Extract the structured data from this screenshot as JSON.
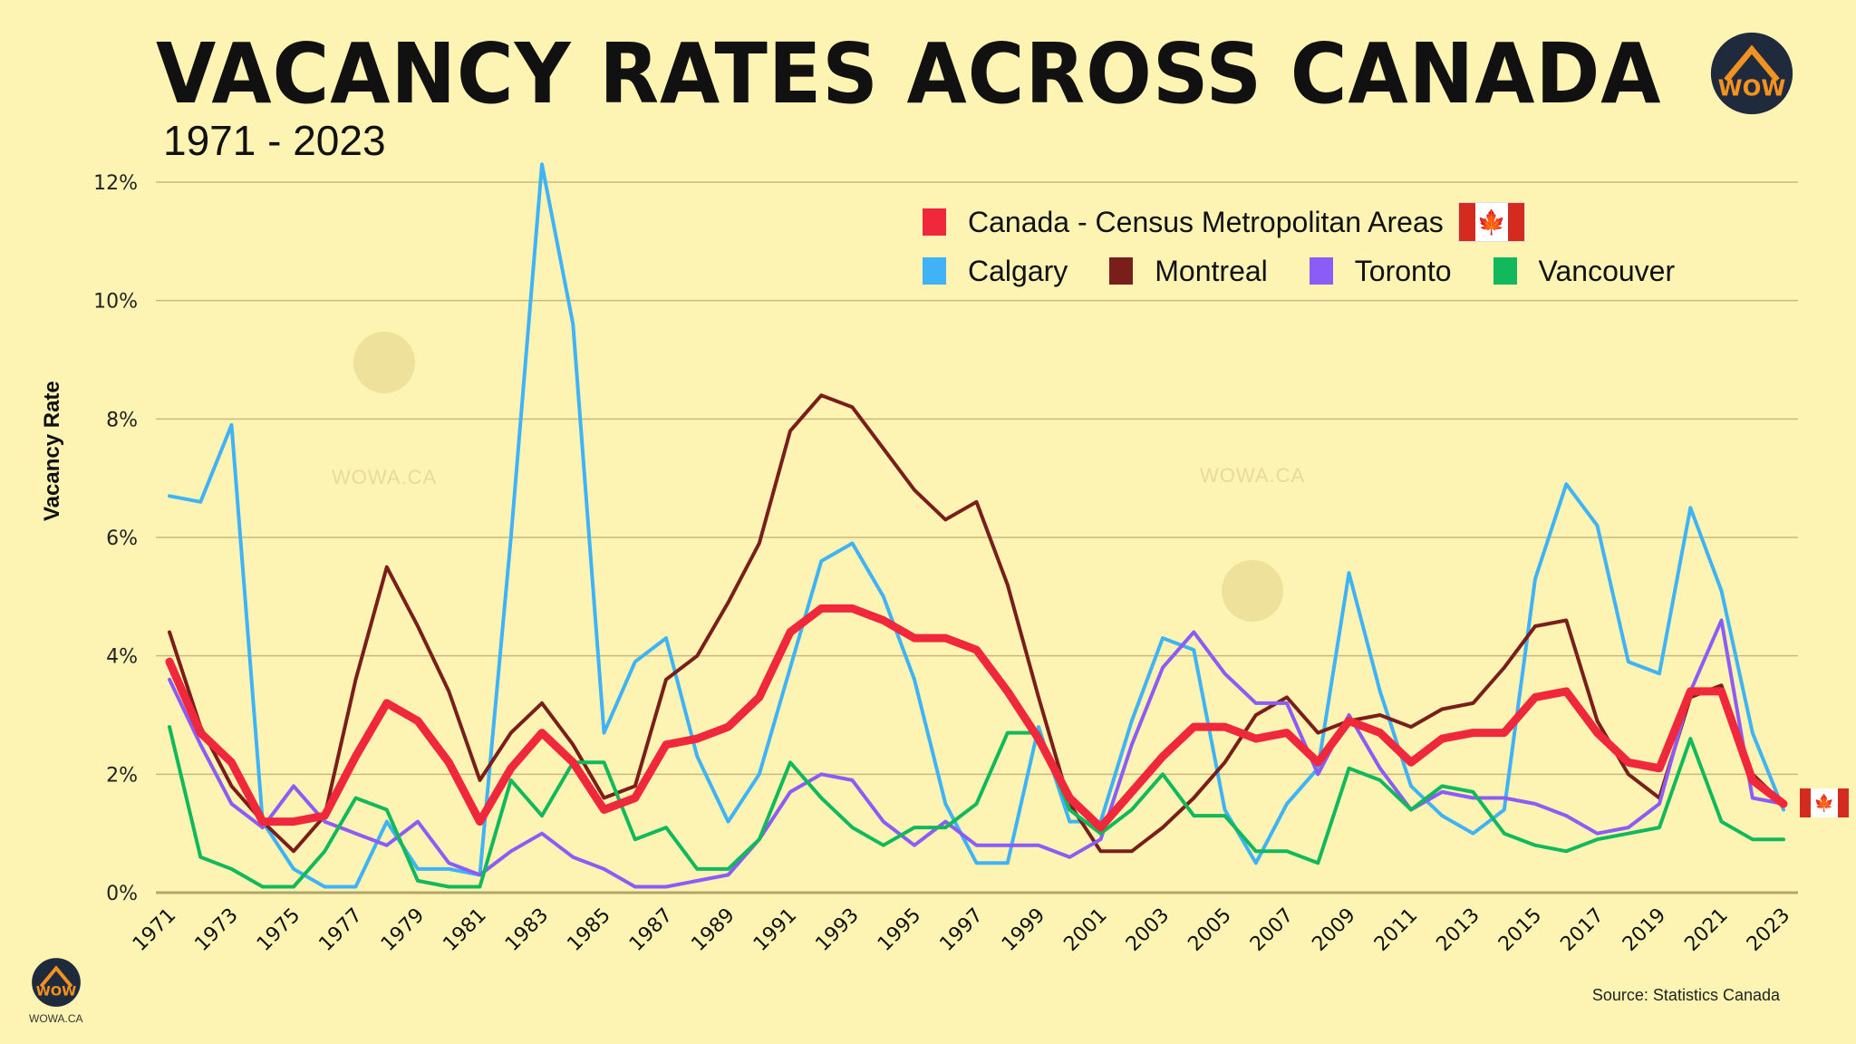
{
  "header": {
    "title": "VACANCY RATES ACROSS CANADA",
    "subtitle": "1971 - 2023"
  },
  "branding": {
    "logo_text": "WOW",
    "site": "WOWA.CA",
    "watermark": "WOWA.CA"
  },
  "footer": {
    "source": "Source: Statistics Canada"
  },
  "legend": {
    "items": [
      {
        "label": "Canada - Census Metropolitan Areas",
        "color": "#f0283c"
      },
      {
        "label": "Calgary",
        "color": "#3fb3f5"
      },
      {
        "label": "Montreal",
        "color": "#7a1e1c"
      },
      {
        "label": "Toronto",
        "color": "#8b5cf6"
      },
      {
        "label": "Vancouver",
        "color": "#12b85c"
      }
    ],
    "flag_symbol": "🍁"
  },
  "chart_data": {
    "type": "line",
    "title": "VACANCY RATES ACROSS CANADA",
    "subtitle": "1971 - 2023",
    "xlabel": "",
    "ylabel": "Vacancy Rate",
    "ylim": [
      0,
      12
    ],
    "yticks": [
      0,
      2,
      4,
      6,
      8,
      10,
      12
    ],
    "ytick_labels": [
      "0%",
      "2%",
      "4%",
      "6%",
      "8%",
      "10%",
      "12%"
    ],
    "xtick_labels": [
      "1971",
      "1973",
      "1975",
      "1977",
      "1979",
      "1981",
      "1983",
      "1985",
      "1987",
      "1989",
      "1991",
      "1993",
      "1995",
      "1997",
      "1999",
      "2001",
      "2003",
      "2005",
      "2007",
      "2009",
      "2011",
      "2013",
      "2015",
      "2017",
      "2019",
      "2021",
      "2023"
    ],
    "grid": true,
    "legend_position": "top-right",
    "x": [
      1971,
      1972,
      1973,
      1974,
      1975,
      1976,
      1977,
      1978,
      1979,
      1980,
      1981,
      1982,
      1983,
      1984,
      1985,
      1986,
      1987,
      1988,
      1989,
      1990,
      1991,
      1992,
      1993,
      1994,
      1995,
      1996,
      1997,
      1998,
      1999,
      2000,
      2001,
      2002,
      2003,
      2004,
      2005,
      2006,
      2007,
      2008,
      2009,
      2010,
      2011,
      2012,
      2013,
      2014,
      2015,
      2016,
      2017,
      2018,
      2019,
      2020,
      2021,
      2022,
      2023
    ],
    "series": [
      {
        "name": "Calgary",
        "color": "#3fb3f5",
        "width": 4,
        "values": [
          6.7,
          6.6,
          7.9,
          1.2,
          0.4,
          0.1,
          0.1,
          1.2,
          0.4,
          0.4,
          0.3,
          6.0,
          12.3,
          9.6,
          2.7,
          3.9,
          4.3,
          2.3,
          1.2,
          2.0,
          3.8,
          5.6,
          5.9,
          5.0,
          3.6,
          1.5,
          0.5,
          0.5,
          2.8,
          1.2,
          1.2,
          2.9,
          4.3,
          4.1,
          1.4,
          0.5,
          1.5,
          2.1,
          5.4,
          3.4,
          1.8,
          1.3,
          1.0,
          1.4,
          5.3,
          6.9,
          6.2,
          3.9,
          3.7,
          6.5,
          5.1,
          2.7,
          1.4
        ]
      },
      {
        "name": "Montreal",
        "color": "#7a1e1c",
        "width": 4,
        "values": [
          4.4,
          2.8,
          1.8,
          1.2,
          0.7,
          1.3,
          3.6,
          5.5,
          4.5,
          3.4,
          1.9,
          2.7,
          3.2,
          2.5,
          1.6,
          1.8,
          3.6,
          4.0,
          4.9,
          5.9,
          7.8,
          8.4,
          8.2,
          7.5,
          6.8,
          6.3,
          6.6,
          5.2,
          3.3,
          1.5,
          0.7,
          0.7,
          1.1,
          1.6,
          2.2,
          3.0,
          3.3,
          2.7,
          2.9,
          3.0,
          2.8,
          3.1,
          3.2,
          3.8,
          4.5,
          4.6,
          2.9,
          2.0,
          1.6,
          3.3,
          3.5,
          2.0,
          1.5
        ]
      },
      {
        "name": "Toronto",
        "color": "#8b5cf6",
        "width": 4,
        "values": [
          3.6,
          2.5,
          1.5,
          1.1,
          1.8,
          1.2,
          1.0,
          0.8,
          1.2,
          0.5,
          0.3,
          0.7,
          1.0,
          0.6,
          0.4,
          0.1,
          0.1,
          0.2,
          0.3,
          0.9,
          1.7,
          2.0,
          1.9,
          1.2,
          0.8,
          1.2,
          0.8,
          0.8,
          0.8,
          0.6,
          0.9,
          2.5,
          3.8,
          4.4,
          3.7,
          3.2,
          3.2,
          2.0,
          3.0,
          2.1,
          1.4,
          1.7,
          1.6,
          1.6,
          1.5,
          1.3,
          1.0,
          1.1,
          1.5,
          3.4,
          4.6,
          1.6,
          1.5
        ]
      },
      {
        "name": "Vancouver",
        "color": "#12b85c",
        "width": 4,
        "values": [
          2.8,
          0.6,
          0.4,
          0.1,
          0.1,
          0.7,
          1.6,
          1.4,
          0.2,
          0.1,
          0.1,
          1.9,
          1.3,
          2.2,
          2.2,
          0.9,
          1.1,
          0.4,
          0.4,
          0.9,
          2.2,
          1.6,
          1.1,
          0.8,
          1.1,
          1.1,
          1.5,
          2.7,
          2.7,
          1.4,
          1.0,
          1.4,
          2.0,
          1.3,
          1.3,
          0.7,
          0.7,
          0.5,
          2.1,
          1.9,
          1.4,
          1.8,
          1.7,
          1.0,
          0.8,
          0.7,
          0.9,
          1.0,
          1.1,
          2.6,
          1.2,
          0.9,
          0.9
        ]
      },
      {
        "name": "Canada - Census Metropolitan Areas",
        "color": "#f0283c",
        "width": 9,
        "values": [
          3.9,
          2.7,
          2.2,
          1.2,
          1.2,
          1.3,
          2.3,
          3.2,
          2.9,
          2.2,
          1.2,
          2.1,
          2.7,
          2.2,
          1.4,
          1.6,
          2.5,
          2.6,
          2.8,
          3.3,
          4.4,
          4.8,
          4.8,
          4.6,
          4.3,
          4.3,
          4.1,
          3.4,
          2.6,
          1.6,
          1.1,
          1.7,
          2.3,
          2.8,
          2.8,
          2.6,
          2.7,
          2.2,
          2.9,
          2.7,
          2.2,
          2.6,
          2.7,
          2.7,
          3.3,
          3.4,
          2.7,
          2.2,
          2.1,
          3.4,
          3.4,
          1.9,
          1.5
        ]
      }
    ]
  }
}
